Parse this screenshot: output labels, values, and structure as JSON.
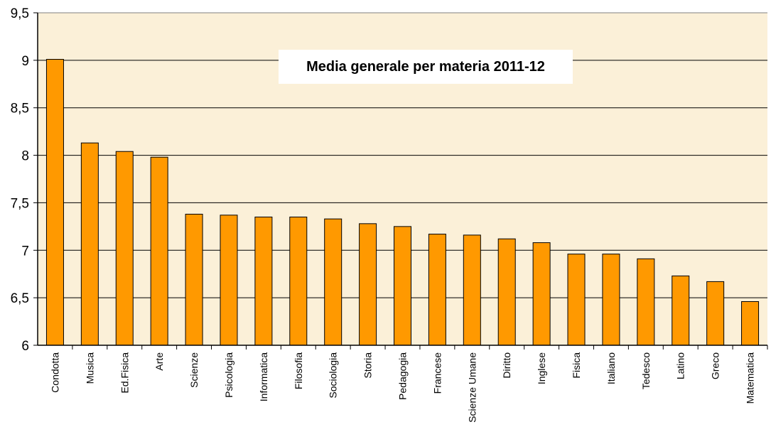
{
  "chart_data": {
    "type": "bar",
    "title": "Media generale per materia  2011-12",
    "xlabel": "",
    "ylabel": "",
    "ylim": [
      6,
      9.5
    ],
    "yticks": [
      "6",
      "6,5",
      "7",
      "7,5",
      "8",
      "8,5",
      "9",
      "9,5"
    ],
    "ytick_values": [
      6,
      6.5,
      7,
      7.5,
      8,
      8.5,
      9,
      9.5
    ],
    "grid": true,
    "categories": [
      "Condotta",
      "Musica",
      "Ed.Fisica",
      "Arte",
      "Scienze",
      "Psicologia",
      "Informatica",
      "Filosofia",
      "Sociologia",
      "Storia",
      "Pedagogia",
      "Francese",
      "Scienze Umane",
      "Diritto",
      "Inglese",
      "Fisica",
      "Italiano",
      "Tedesco",
      "Latino",
      "Greco",
      "Matematica"
    ],
    "values": [
      9.01,
      8.13,
      8.04,
      7.98,
      7.38,
      7.37,
      7.35,
      7.35,
      7.33,
      7.28,
      7.25,
      7.17,
      7.16,
      7.12,
      7.08,
      6.96,
      6.96,
      6.91,
      6.73,
      6.67,
      6.46
    ],
    "colors": {
      "bar": "#FF9900",
      "plot_bg": "#FBF0D8",
      "grid": "#000000"
    }
  }
}
